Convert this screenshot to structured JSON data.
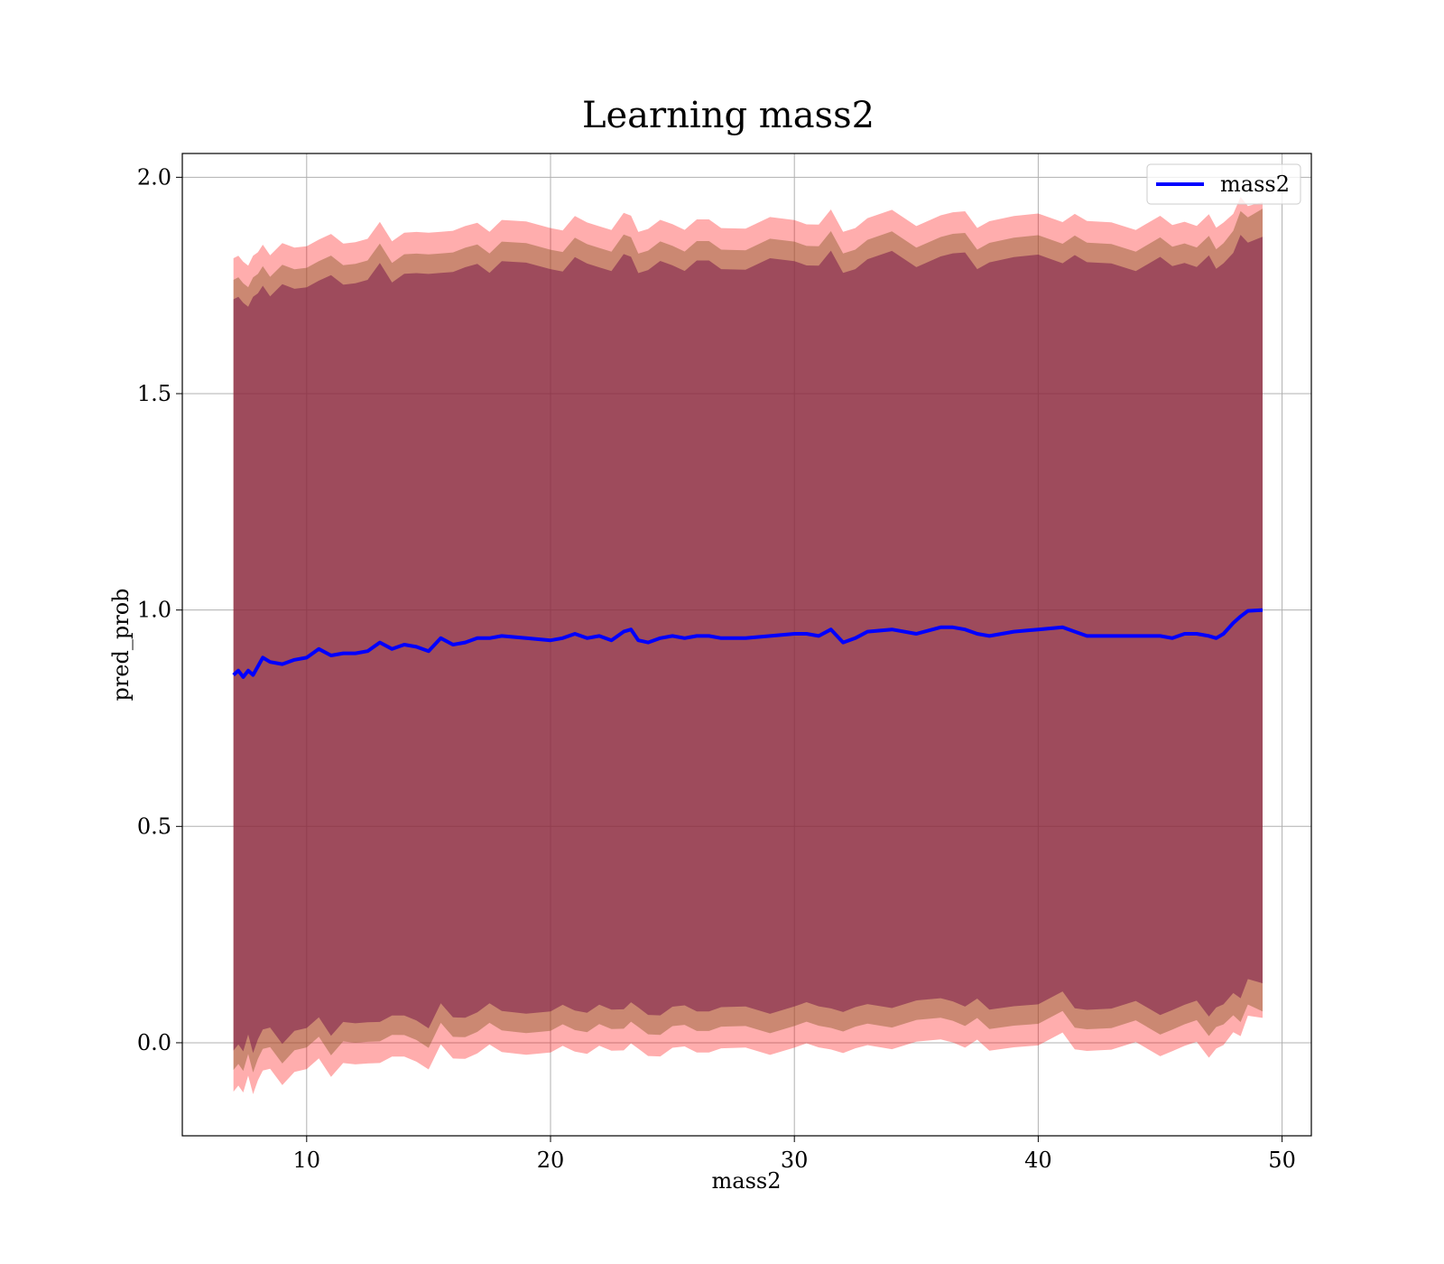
{
  "chart_data": {
    "type": "line",
    "title": "Learning mass2",
    "xlabel": "mass2",
    "ylabel": "pred_prob",
    "xlim": [
      4.9,
      51.2
    ],
    "ylim": [
      -0.215,
      2.055
    ],
    "xticks": [
      10,
      20,
      30,
      40,
      50
    ],
    "yticks": [
      0.0,
      0.5,
      1.0,
      1.5,
      2.0
    ],
    "xtick_labels": [
      "10",
      "20",
      "30",
      "40",
      "50"
    ],
    "ytick_labels": [
      "0.0",
      "0.5",
      "1.0",
      "1.5",
      "2.0"
    ],
    "grid": true,
    "legend_position": "upper right",
    "colors": {
      "line": "#0000ff",
      "outer_band": "#ff0000",
      "middle_band": "#8b5a2b",
      "inner_band": "#7a1a4a",
      "grid": "#b0b0b0"
    },
    "series": [
      {
        "name": "mass2",
        "x": [
          7.0,
          7.2,
          7.4,
          7.6,
          7.8,
          8.0,
          8.2,
          8.5,
          9.0,
          9.5,
          10.0,
          10.5,
          11.0,
          11.5,
          12.0,
          12.5,
          13.0,
          13.5,
          14.0,
          14.5,
          15.0,
          15.5,
          16.0,
          16.5,
          17.0,
          17.5,
          18.0,
          19.0,
          20.0,
          20.5,
          21.0,
          21.5,
          22.0,
          22.5,
          23.0,
          23.3,
          23.6,
          24.0,
          24.5,
          25.0,
          25.5,
          26.0,
          26.5,
          27.0,
          28.0,
          29.0,
          30.0,
          30.5,
          31.0,
          31.5,
          32.0,
          32.5,
          33.0,
          34.0,
          35.0,
          36.0,
          36.5,
          37.0,
          37.5,
          38.0,
          39.0,
          40.0,
          41.0,
          41.5,
          42.0,
          43.0,
          44.0,
          45.0,
          45.5,
          46.0,
          46.5,
          47.0,
          47.3,
          47.6,
          48.0,
          48.3,
          48.6,
          49.2
        ],
        "y": [
          0.85,
          0.86,
          0.845,
          0.86,
          0.85,
          0.87,
          0.89,
          0.88,
          0.875,
          0.885,
          0.89,
          0.91,
          0.895,
          0.9,
          0.9,
          0.905,
          0.925,
          0.91,
          0.92,
          0.915,
          0.905,
          0.935,
          0.92,
          0.925,
          0.935,
          0.935,
          0.94,
          0.935,
          0.93,
          0.935,
          0.945,
          0.935,
          0.94,
          0.93,
          0.95,
          0.955,
          0.93,
          0.925,
          0.935,
          0.94,
          0.935,
          0.94,
          0.94,
          0.935,
          0.935,
          0.94,
          0.945,
          0.945,
          0.94,
          0.955,
          0.925,
          0.935,
          0.95,
          0.955,
          0.945,
          0.96,
          0.96,
          0.955,
          0.945,
          0.94,
          0.95,
          0.955,
          0.96,
          0.95,
          0.94,
          0.94,
          0.94,
          0.94,
          0.935,
          0.945,
          0.945,
          0.94,
          0.935,
          0.945,
          0.97,
          0.985,
          0.998,
          1.0
        ]
      }
    ]
  }
}
